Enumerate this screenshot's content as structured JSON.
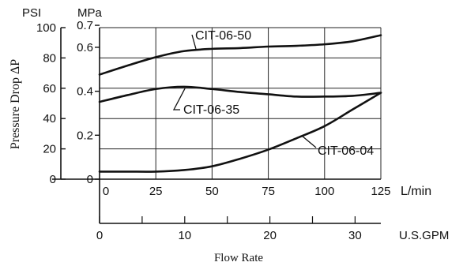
{
  "chart_data": {
    "type": "line",
    "ylabel": "Pressure Drop ΔP",
    "xlabel": "Flow Rate",
    "y_units": {
      "psi": "PSI",
      "mpa": "MPa"
    },
    "x_units": {
      "lmin": "L/min",
      "gpm": "U.S.GPM"
    },
    "psi_ticks": [
      "0",
      "20",
      "40",
      "60",
      "80",
      "100"
    ],
    "mpa_ticks": [
      "0",
      "0.2",
      "0.4",
      "0.6",
      "0.7"
    ],
    "lmin_ticks": [
      "0",
      "25",
      "50",
      "75",
      "100",
      "125"
    ],
    "gpm_ticks": [
      "0",
      "10",
      "20",
      "30"
    ],
    "xlim_lmin": [
      0,
      125
    ],
    "ylim_psi": [
      0,
      100
    ],
    "grid": true,
    "series": [
      {
        "name": "CIT-06-50",
        "x": [
          0,
          12.5,
          25,
          37.5,
          50,
          62.5,
          75,
          87.5,
          100,
          112.5,
          125
        ],
        "y": [
          69,
          75,
          80.5,
          84.5,
          86,
          86.5,
          87.5,
          88,
          89,
          91,
          95
        ]
      },
      {
        "name": "CIT-06-35",
        "x": [
          0,
          12.5,
          25,
          37.5,
          50,
          62.5,
          75,
          87.5,
          100,
          112.5,
          125
        ],
        "y": [
          51,
          55.5,
          59.5,
          61,
          59.5,
          57.5,
          56,
          54.5,
          54.5,
          55,
          57
        ]
      },
      {
        "name": "CIT-06-04",
        "x": [
          0,
          12.5,
          25,
          37.5,
          50,
          62.5,
          75,
          87.5,
          100,
          112.5,
          125
        ],
        "y": [
          5,
          5,
          5,
          6,
          8.5,
          13.5,
          19.5,
          27,
          35,
          46,
          57
        ]
      }
    ]
  }
}
